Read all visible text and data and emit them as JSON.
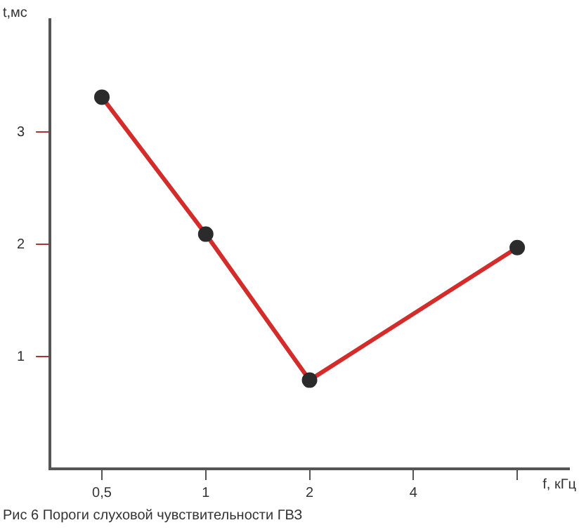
{
  "chart_data": {
    "type": "line",
    "xlabel": "f, кГц",
    "ylabel": "t,мс",
    "categories": [
      "0,5",
      "1",
      "2",
      "4",
      null
    ],
    "series": [
      {
        "color": "#d42b2b",
        "values": [
          3.31,
          2.09,
          0.79,
          null,
          1.97
        ]
      }
    ],
    "ylim": [
      0,
      4
    ],
    "yticks": [
      1,
      2,
      3
    ],
    "grid": false,
    "legend": false,
    "marker": "circle",
    "line_style": "solid",
    "annotations": [
      "Рис 6 Пороги слуховой чувствительности ГВЗ"
    ]
  }
}
